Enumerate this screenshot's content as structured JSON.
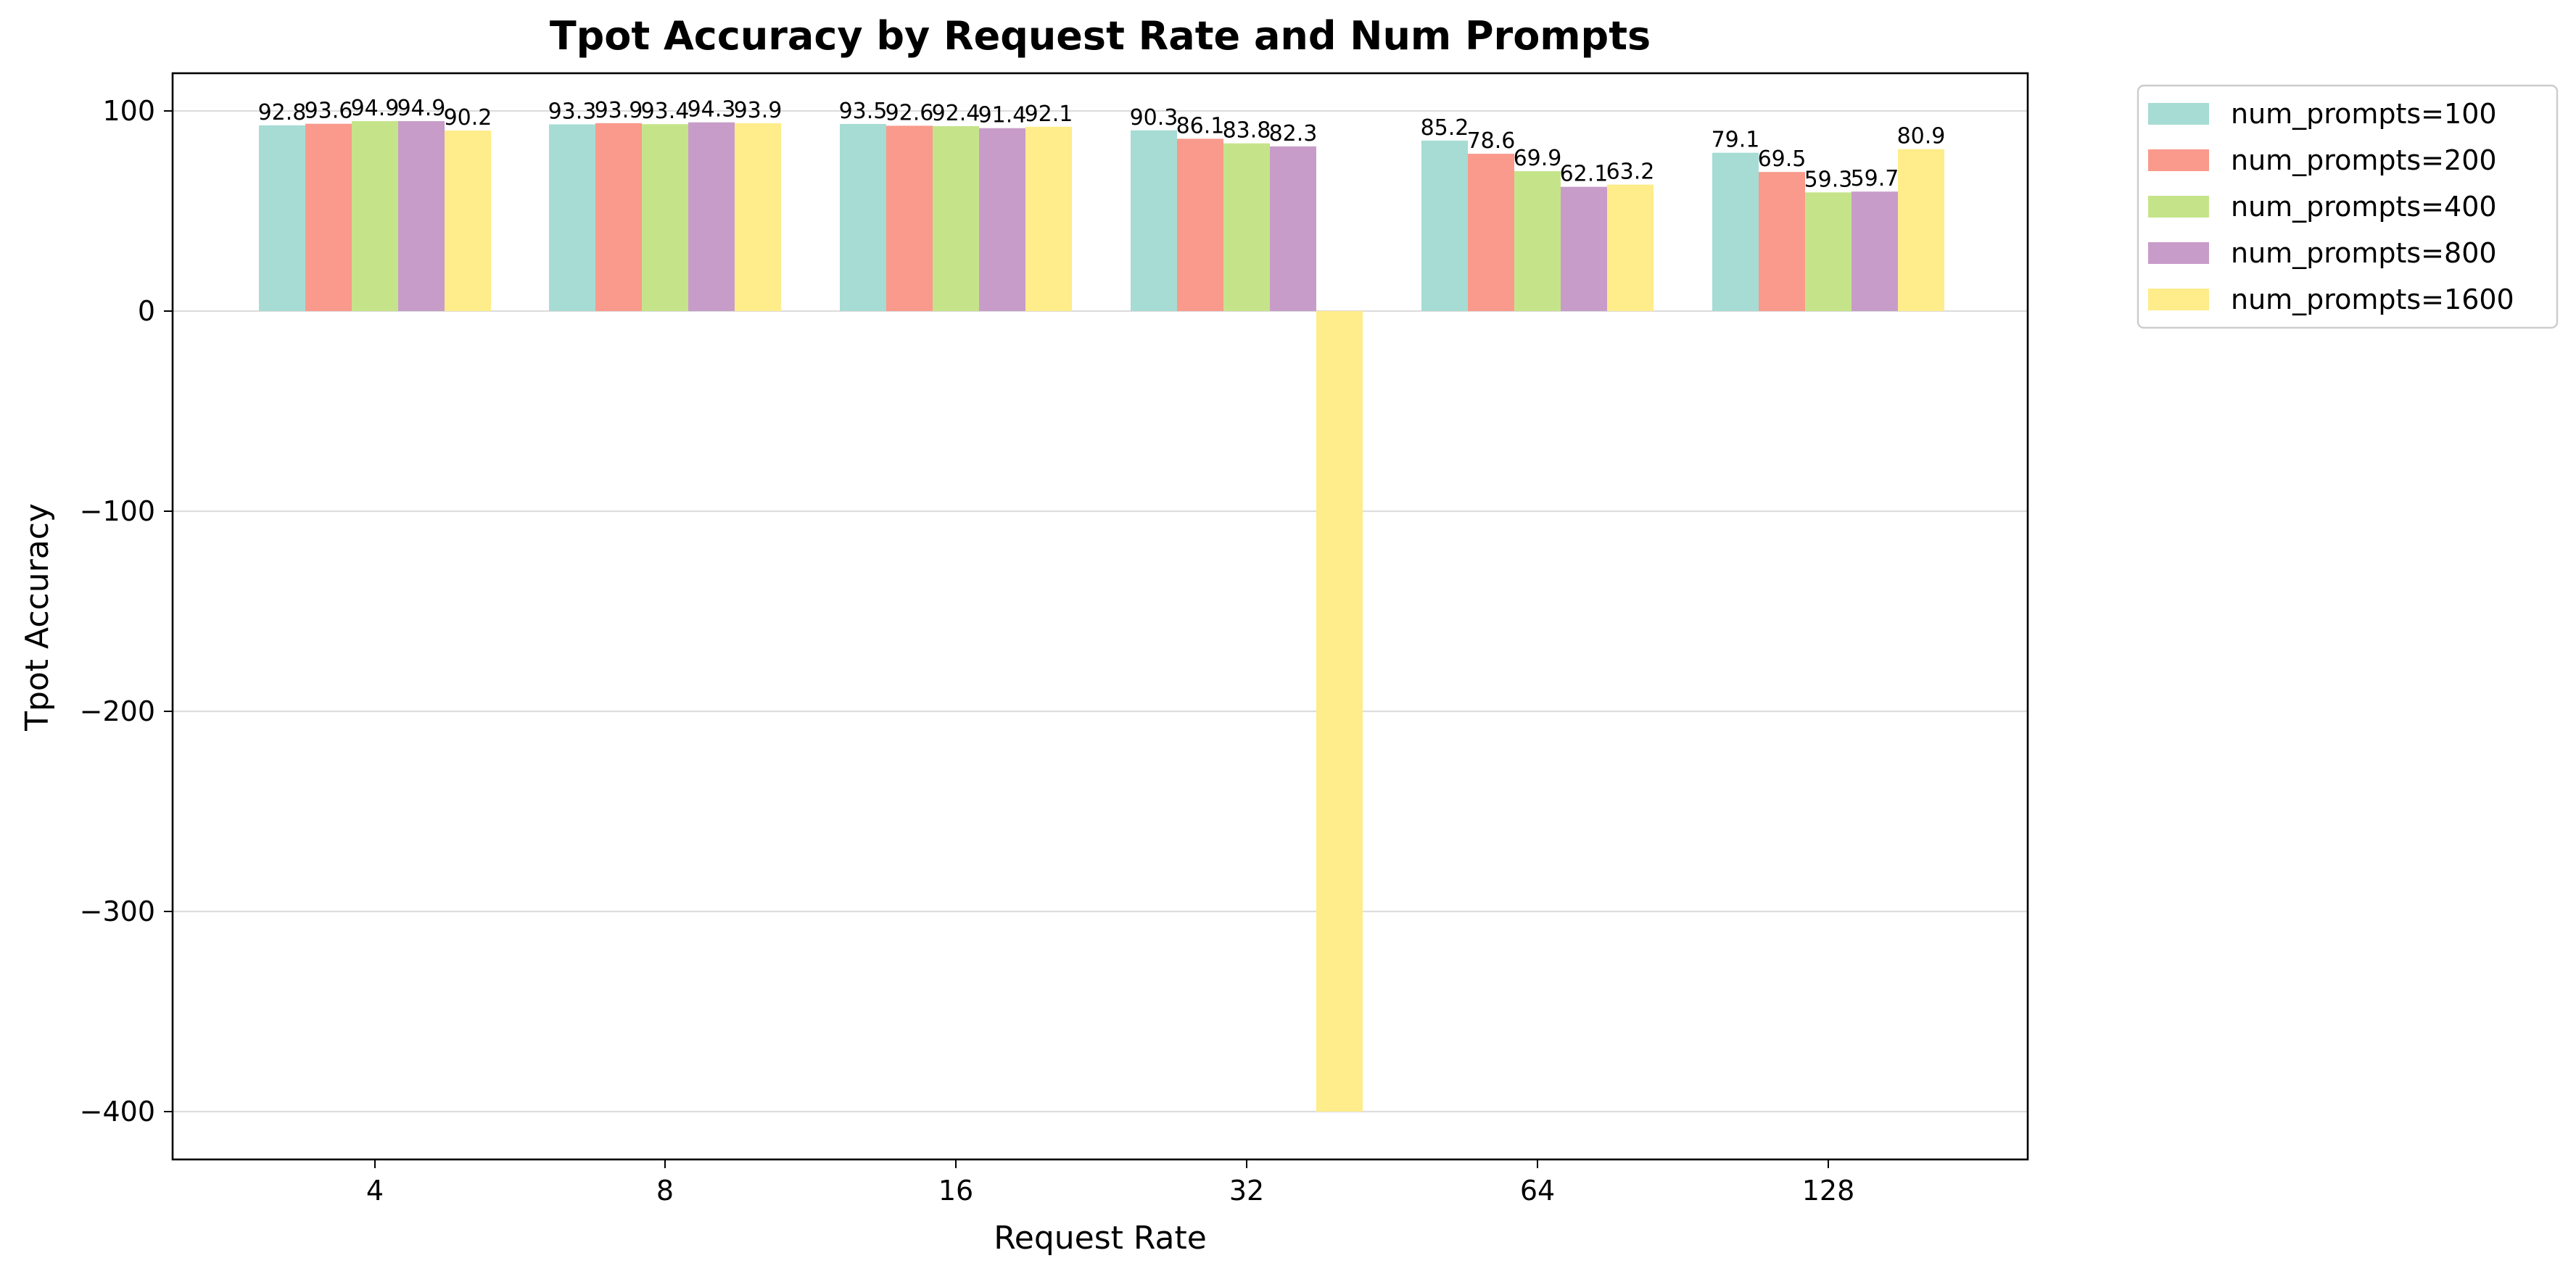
{
  "chart_data": {
    "type": "bar",
    "title": "Tpot Accuracy by Request Rate and Num Prompts",
    "xlabel": "Request Rate",
    "ylabel": "Tpot Accuracy",
    "categories": [
      "4",
      "8",
      "16",
      "32",
      "64",
      "128"
    ],
    "ylim": [
      -425,
      120
    ],
    "yticks": [
      100,
      0,
      -100,
      -200,
      -300,
      -400
    ],
    "ytick_labels": [
      "100",
      "0",
      "−100",
      "−200",
      "−300",
      "−400"
    ],
    "grid": "horizontal",
    "legend_position": "outside-top-right",
    "series": [
      {
        "name": "num_prompts=100",
        "color": "#a6dcd3",
        "values": [
          92.8,
          93.3,
          93.5,
          90.3,
          85.2,
          79.1
        ],
        "labels": [
          "92.8",
          "93.3",
          "93.5",
          "90.3",
          "85.2",
          "79.1"
        ]
      },
      {
        "name": "num_prompts=200",
        "color": "#f99a8c",
        "values": [
          93.6,
          93.9,
          92.6,
          86.1,
          78.6,
          69.5
        ],
        "labels": [
          "93.6",
          "93.9",
          "92.6",
          "86.1",
          "78.6",
          "69.5"
        ]
      },
      {
        "name": "num_prompts=400",
        "color": "#c5e48a",
        "values": [
          94.9,
          93.4,
          92.4,
          83.8,
          69.9,
          59.3
        ],
        "labels": [
          "94.9",
          "93.4",
          "92.4",
          "83.8",
          "69.9",
          "59.3"
        ]
      },
      {
        "name": "num_prompts=800",
        "color": "#c89cc9",
        "values": [
          94.9,
          94.3,
          91.4,
          82.3,
          62.1,
          59.7
        ],
        "labels": [
          "94.9",
          "94.3",
          "91.4",
          "82.3",
          "62.1",
          "59.7"
        ]
      },
      {
        "name": "num_prompts=1600",
        "color": "#ffec8a",
        "values": [
          90.2,
          93.9,
          92.1,
          -400,
          63.2,
          80.9
        ],
        "labels": [
          "90.2",
          "93.9",
          "92.1",
          "",
          "63.2",
          "80.9"
        ]
      }
    ]
  }
}
